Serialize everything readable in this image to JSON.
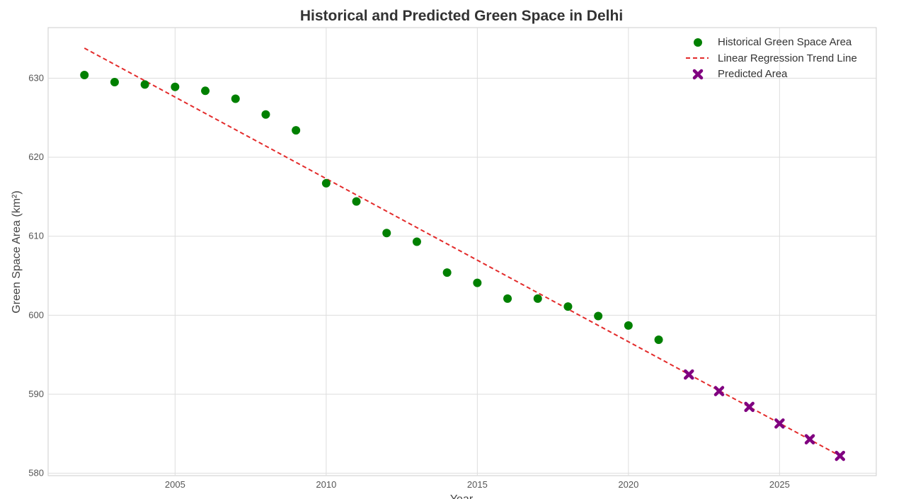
{
  "chart_data": {
    "type": "scatter",
    "title": "Historical and Predicted Green Space in Delhi",
    "xlabel": "Year",
    "ylabel": "Green Space Area (km²)",
    "xlim": [
      2000.8,
      2028.2
    ],
    "ylim": [
      579.7,
      636.4
    ],
    "xticks": [
      2005,
      2010,
      2015,
      2020,
      2025
    ],
    "yticks": [
      580,
      590,
      600,
      610,
      620,
      630
    ],
    "grid": true,
    "legend_position": "top-right",
    "series": [
      {
        "name": "Historical Green Space Area",
        "kind": "scatter",
        "marker": "circle",
        "color": "#008000",
        "x": [
          2002,
          2003,
          2004,
          2005,
          2006,
          2007,
          2008,
          2009,
          2010,
          2011,
          2012,
          2013,
          2014,
          2015,
          2016,
          2017,
          2018,
          2019,
          2020,
          2021
        ],
        "y": [
          630.4,
          629.5,
          629.2,
          628.9,
          628.4,
          627.4,
          625.4,
          623.4,
          616.7,
          614.4,
          610.4,
          609.3,
          605.4,
          604.1,
          602.1,
          602.1,
          601.1,
          599.9,
          598.7,
          596.9
        ]
      },
      {
        "name": "Linear Regression Trend Line",
        "kind": "line",
        "line_style": "dashed",
        "color": "#e32b2b",
        "x": [
          2002,
          2027
        ],
        "y": [
          633.8,
          582.2
        ]
      },
      {
        "name": "Predicted Area",
        "kind": "scatter",
        "marker": "x",
        "color": "#800080",
        "x": [
          2022,
          2023,
          2024,
          2025,
          2026,
          2027
        ],
        "y": [
          592.5,
          590.4,
          588.4,
          586.3,
          584.3,
          582.2
        ]
      }
    ]
  }
}
